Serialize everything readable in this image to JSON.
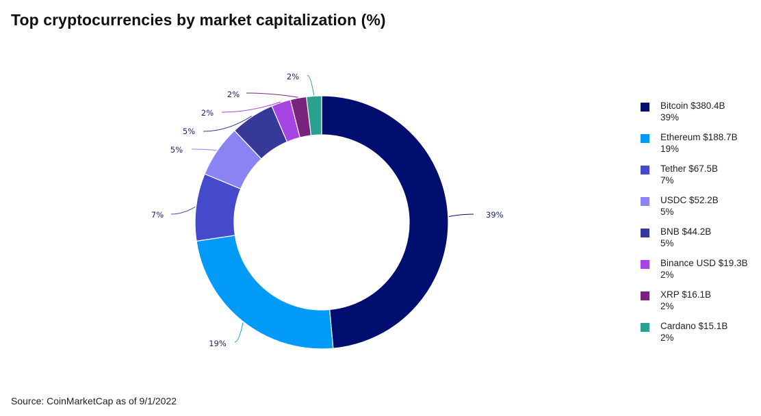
{
  "chart_data": {
    "type": "pie",
    "title": "Top cryptocurrencies by market capitalization (%)",
    "source": "Source: CoinMarketCap as of 9/1/2022",
    "legend_position": "right",
    "donut": true,
    "label_color": "#1a2470",
    "slices": [
      {
        "name": "Bitcoin $380.4B",
        "label": "39%",
        "value": 380.4,
        "color": "#000e6f"
      },
      {
        "name": "Ethereum $188.7B",
        "label": "19%",
        "value": 188.7,
        "color": "#019af7"
      },
      {
        "name": "Tether $67.5B",
        "label": "7%",
        "value": 67.5,
        "color": "#4549cc"
      },
      {
        "name": "USDC $52.2B",
        "label": "5%",
        "value": 52.2,
        "color": "#8c83f3"
      },
      {
        "name": "BNB $44.2B",
        "label": "5%",
        "value": 44.2,
        "color": "#363998"
      },
      {
        "name": "Binance USD $19.3B",
        "label": "2%",
        "value": 19.3,
        "color": "#a643e3"
      },
      {
        "name": "XRP $16.1B",
        "label": "2%",
        "value": 16.1,
        "color": "#79237f"
      },
      {
        "name": "Cardano $15.1B",
        "label": "2%",
        "value": 15.1,
        "color": "#2aa08e"
      }
    ]
  }
}
